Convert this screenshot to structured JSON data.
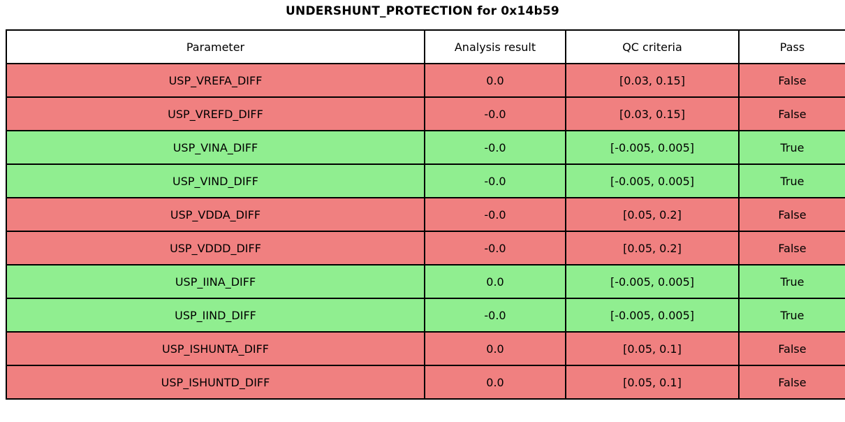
{
  "title": "UNDERSHUNT_PROTECTION for 0x14b59",
  "colors": {
    "pass_true_bg": "#90ee90",
    "pass_false_bg": "#f08080",
    "header_bg": "#ffffff",
    "border": "#000000",
    "text": "#000000"
  },
  "chart_data": {
    "type": "table",
    "title": "UNDERSHUNT_PROTECTION for 0x14b59",
    "columns": [
      "Parameter",
      "Analysis result",
      "QC criteria",
      "Pass"
    ],
    "rows": [
      {
        "parameter": "USP_VREFA_DIFF",
        "result": "0.0",
        "criteria": "[0.03, 0.15]",
        "pass": "False"
      },
      {
        "parameter": "USP_VREFD_DIFF",
        "result": "-0.0",
        "criteria": "[0.03, 0.15]",
        "pass": "False"
      },
      {
        "parameter": "USP_VINA_DIFF",
        "result": "-0.0",
        "criteria": "[-0.005, 0.005]",
        "pass": "True"
      },
      {
        "parameter": "USP_VIND_DIFF",
        "result": "-0.0",
        "criteria": "[-0.005, 0.005]",
        "pass": "True"
      },
      {
        "parameter": "USP_VDDA_DIFF",
        "result": "-0.0",
        "criteria": "[0.05, 0.2]",
        "pass": "False"
      },
      {
        "parameter": "USP_VDDD_DIFF",
        "result": "-0.0",
        "criteria": "[0.05, 0.2]",
        "pass": "False"
      },
      {
        "parameter": "USP_IINA_DIFF",
        "result": "0.0",
        "criteria": "[-0.005, 0.005]",
        "pass": "True"
      },
      {
        "parameter": "USP_IIND_DIFF",
        "result": "-0.0",
        "criteria": "[-0.005, 0.005]",
        "pass": "True"
      },
      {
        "parameter": "USP_ISHUNTA_DIFF",
        "result": "0.0",
        "criteria": "[0.05, 0.1]",
        "pass": "False"
      },
      {
        "parameter": "USP_ISHUNTD_DIFF",
        "result": "0.0",
        "criteria": "[0.05, 0.1]",
        "pass": "False"
      }
    ]
  }
}
